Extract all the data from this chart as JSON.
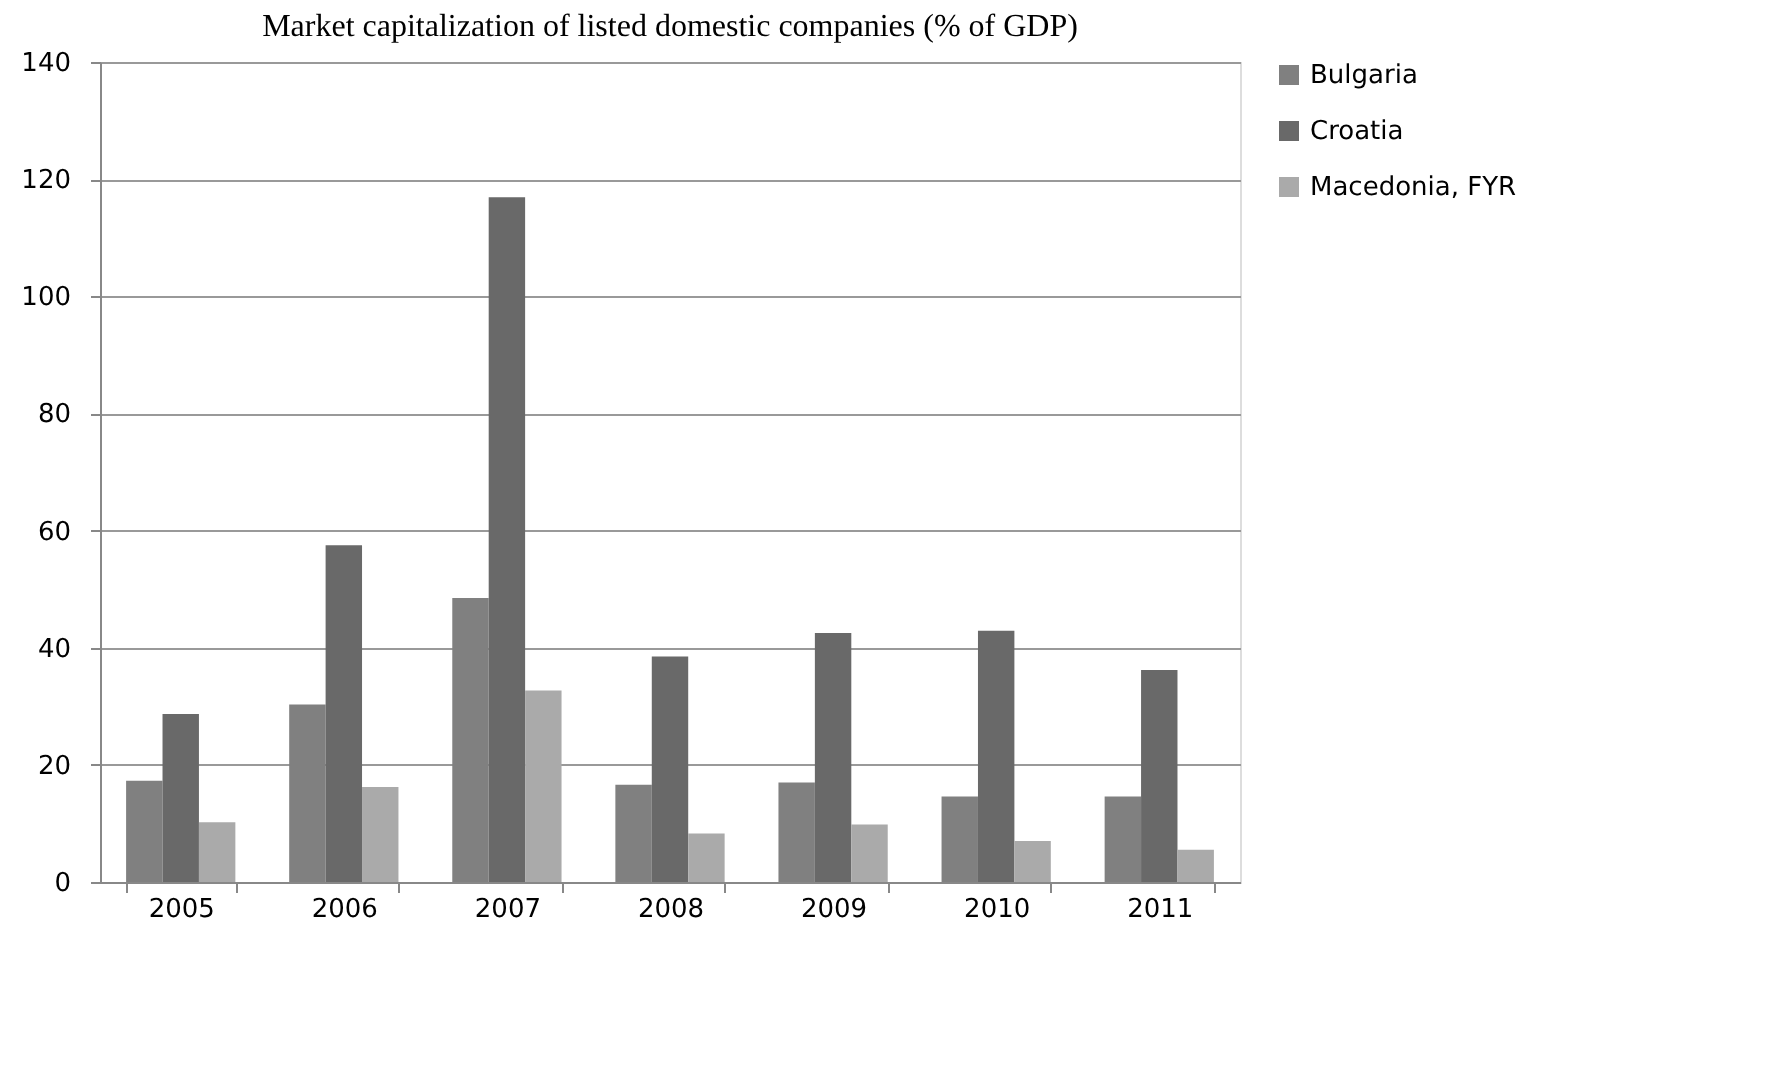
{
  "chart_data": {
    "type": "bar",
    "title": "Market capitalization of listed domestic companies (% of GDP)",
    "categories": [
      "2005",
      "2006",
      "2007",
      "2008",
      "2009",
      "2010",
      "2011"
    ],
    "series": [
      {
        "name": "Bulgaria",
        "color": "#808080",
        "values": [
          17.3,
          30.3,
          48.5,
          16.6,
          17.0,
          14.6,
          14.6
        ]
      },
      {
        "name": "Croatia",
        "color": "#696969",
        "values": [
          28.7,
          57.5,
          116.9,
          38.5,
          42.5,
          42.9,
          36.2
        ]
      },
      {
        "name": "Macedonia, FYR",
        "color": "#aaaaaa",
        "values": [
          10.2,
          16.2,
          32.7,
          8.3,
          9.8,
          7.0,
          5.5
        ]
      }
    ],
    "ylim": [
      0,
      140
    ],
    "yticks": [
      0,
      20,
      40,
      60,
      80,
      100,
      120,
      140
    ],
    "grid": "y",
    "legend": "right"
  }
}
